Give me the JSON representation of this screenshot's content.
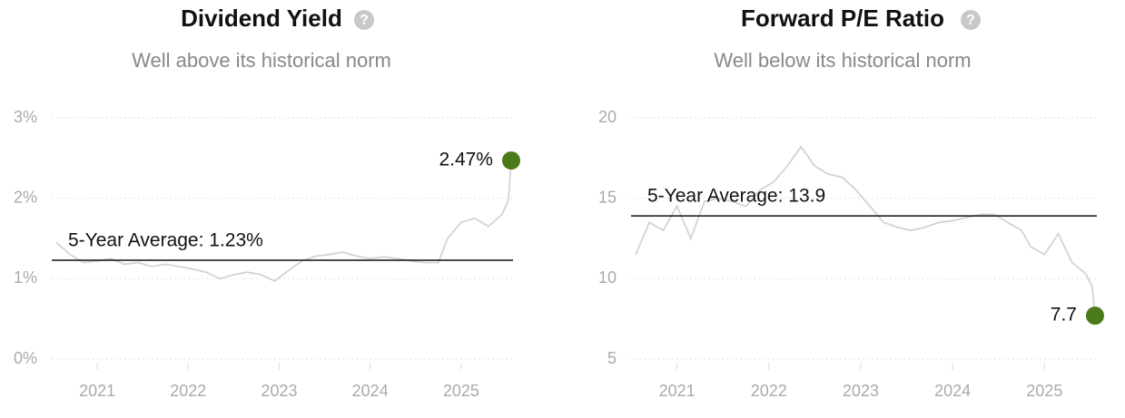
{
  "chart_data": [
    {
      "type": "line",
      "title": "Dividend Yield",
      "subtitle": "Well above its historical norm",
      "x": [
        2020.55,
        2020.7,
        2020.85,
        2021.0,
        2021.15,
        2021.3,
        2021.45,
        2021.6,
        2021.75,
        2021.9,
        2022.05,
        2022.2,
        2022.35,
        2022.5,
        2022.65,
        2022.8,
        2022.95,
        2023.1,
        2023.25,
        2023.4,
        2023.55,
        2023.7,
        2023.85,
        2024.0,
        2024.15,
        2024.3,
        2024.45,
        2024.6,
        2024.75,
        2024.85,
        2025.0,
        2025.15,
        2025.3,
        2025.45,
        2025.52,
        2025.55
      ],
      "values": [
        1.45,
        1.3,
        1.2,
        1.22,
        1.25,
        1.18,
        1.2,
        1.15,
        1.18,
        1.15,
        1.12,
        1.08,
        1.0,
        1.05,
        1.08,
        1.05,
        0.97,
        1.1,
        1.22,
        1.28,
        1.3,
        1.33,
        1.28,
        1.25,
        1.27,
        1.25,
        1.22,
        1.2,
        1.2,
        1.5,
        1.7,
        1.75,
        1.65,
        1.8,
        1.98,
        2.47
      ],
      "color": "#d3d3d3",
      "marker_color": "#4a7a19",
      "average": {
        "value": 1.23,
        "label": "5-Year Average: 1.23%"
      },
      "current": {
        "value": 2.47,
        "label": "2.47%"
      },
      "xlim": [
        2020.5,
        2025.57
      ],
      "xticks": [
        2021,
        2022,
        2023,
        2024,
        2025
      ],
      "ylim": [
        0,
        3
      ],
      "yticks": [
        {
          "value": 0,
          "label": "0%"
        },
        {
          "value": 1,
          "label": "1%"
        },
        {
          "value": 2,
          "label": "2%"
        },
        {
          "value": 3,
          "label": "3%"
        }
      ],
      "grid": true
    },
    {
      "type": "line",
      "title": "Forward P/E Ratio",
      "subtitle": "Well below its historical norm",
      "x": [
        2020.55,
        2020.7,
        2020.85,
        2021.0,
        2021.15,
        2021.3,
        2021.45,
        2021.6,
        2021.75,
        2021.9,
        2022.05,
        2022.2,
        2022.35,
        2022.5,
        2022.65,
        2022.8,
        2022.95,
        2023.1,
        2023.25,
        2023.4,
        2023.55,
        2023.7,
        2023.85,
        2024.0,
        2024.15,
        2024.3,
        2024.45,
        2024.6,
        2024.75,
        2024.85,
        2025.0,
        2025.15,
        2025.3,
        2025.45,
        2025.52,
        2025.55
      ],
      "values": [
        11.5,
        13.5,
        13,
        14.5,
        12.5,
        14.8,
        15,
        14.8,
        14.5,
        15.5,
        16,
        17,
        18.2,
        17,
        16.5,
        16.3,
        15.5,
        14.5,
        13.5,
        13.2,
        13,
        13.2,
        13.5,
        13.6,
        13.8,
        14,
        14,
        13.5,
        13,
        12,
        11.5,
        12.8,
        11,
        10.3,
        9.5,
        7.7
      ],
      "color": "#d3d3d3",
      "marker_color": "#4a7a19",
      "average": {
        "value": 13.9,
        "label": "5-Year Average: 13.9"
      },
      "current": {
        "value": 7.7,
        "label": "7.7"
      },
      "xlim": [
        2020.5,
        2025.57
      ],
      "xticks": [
        2021,
        2022,
        2023,
        2024,
        2025
      ],
      "ylim": [
        5,
        20
      ],
      "yticks": [
        5,
        10,
        15,
        20
      ],
      "grid": true
    }
  ]
}
